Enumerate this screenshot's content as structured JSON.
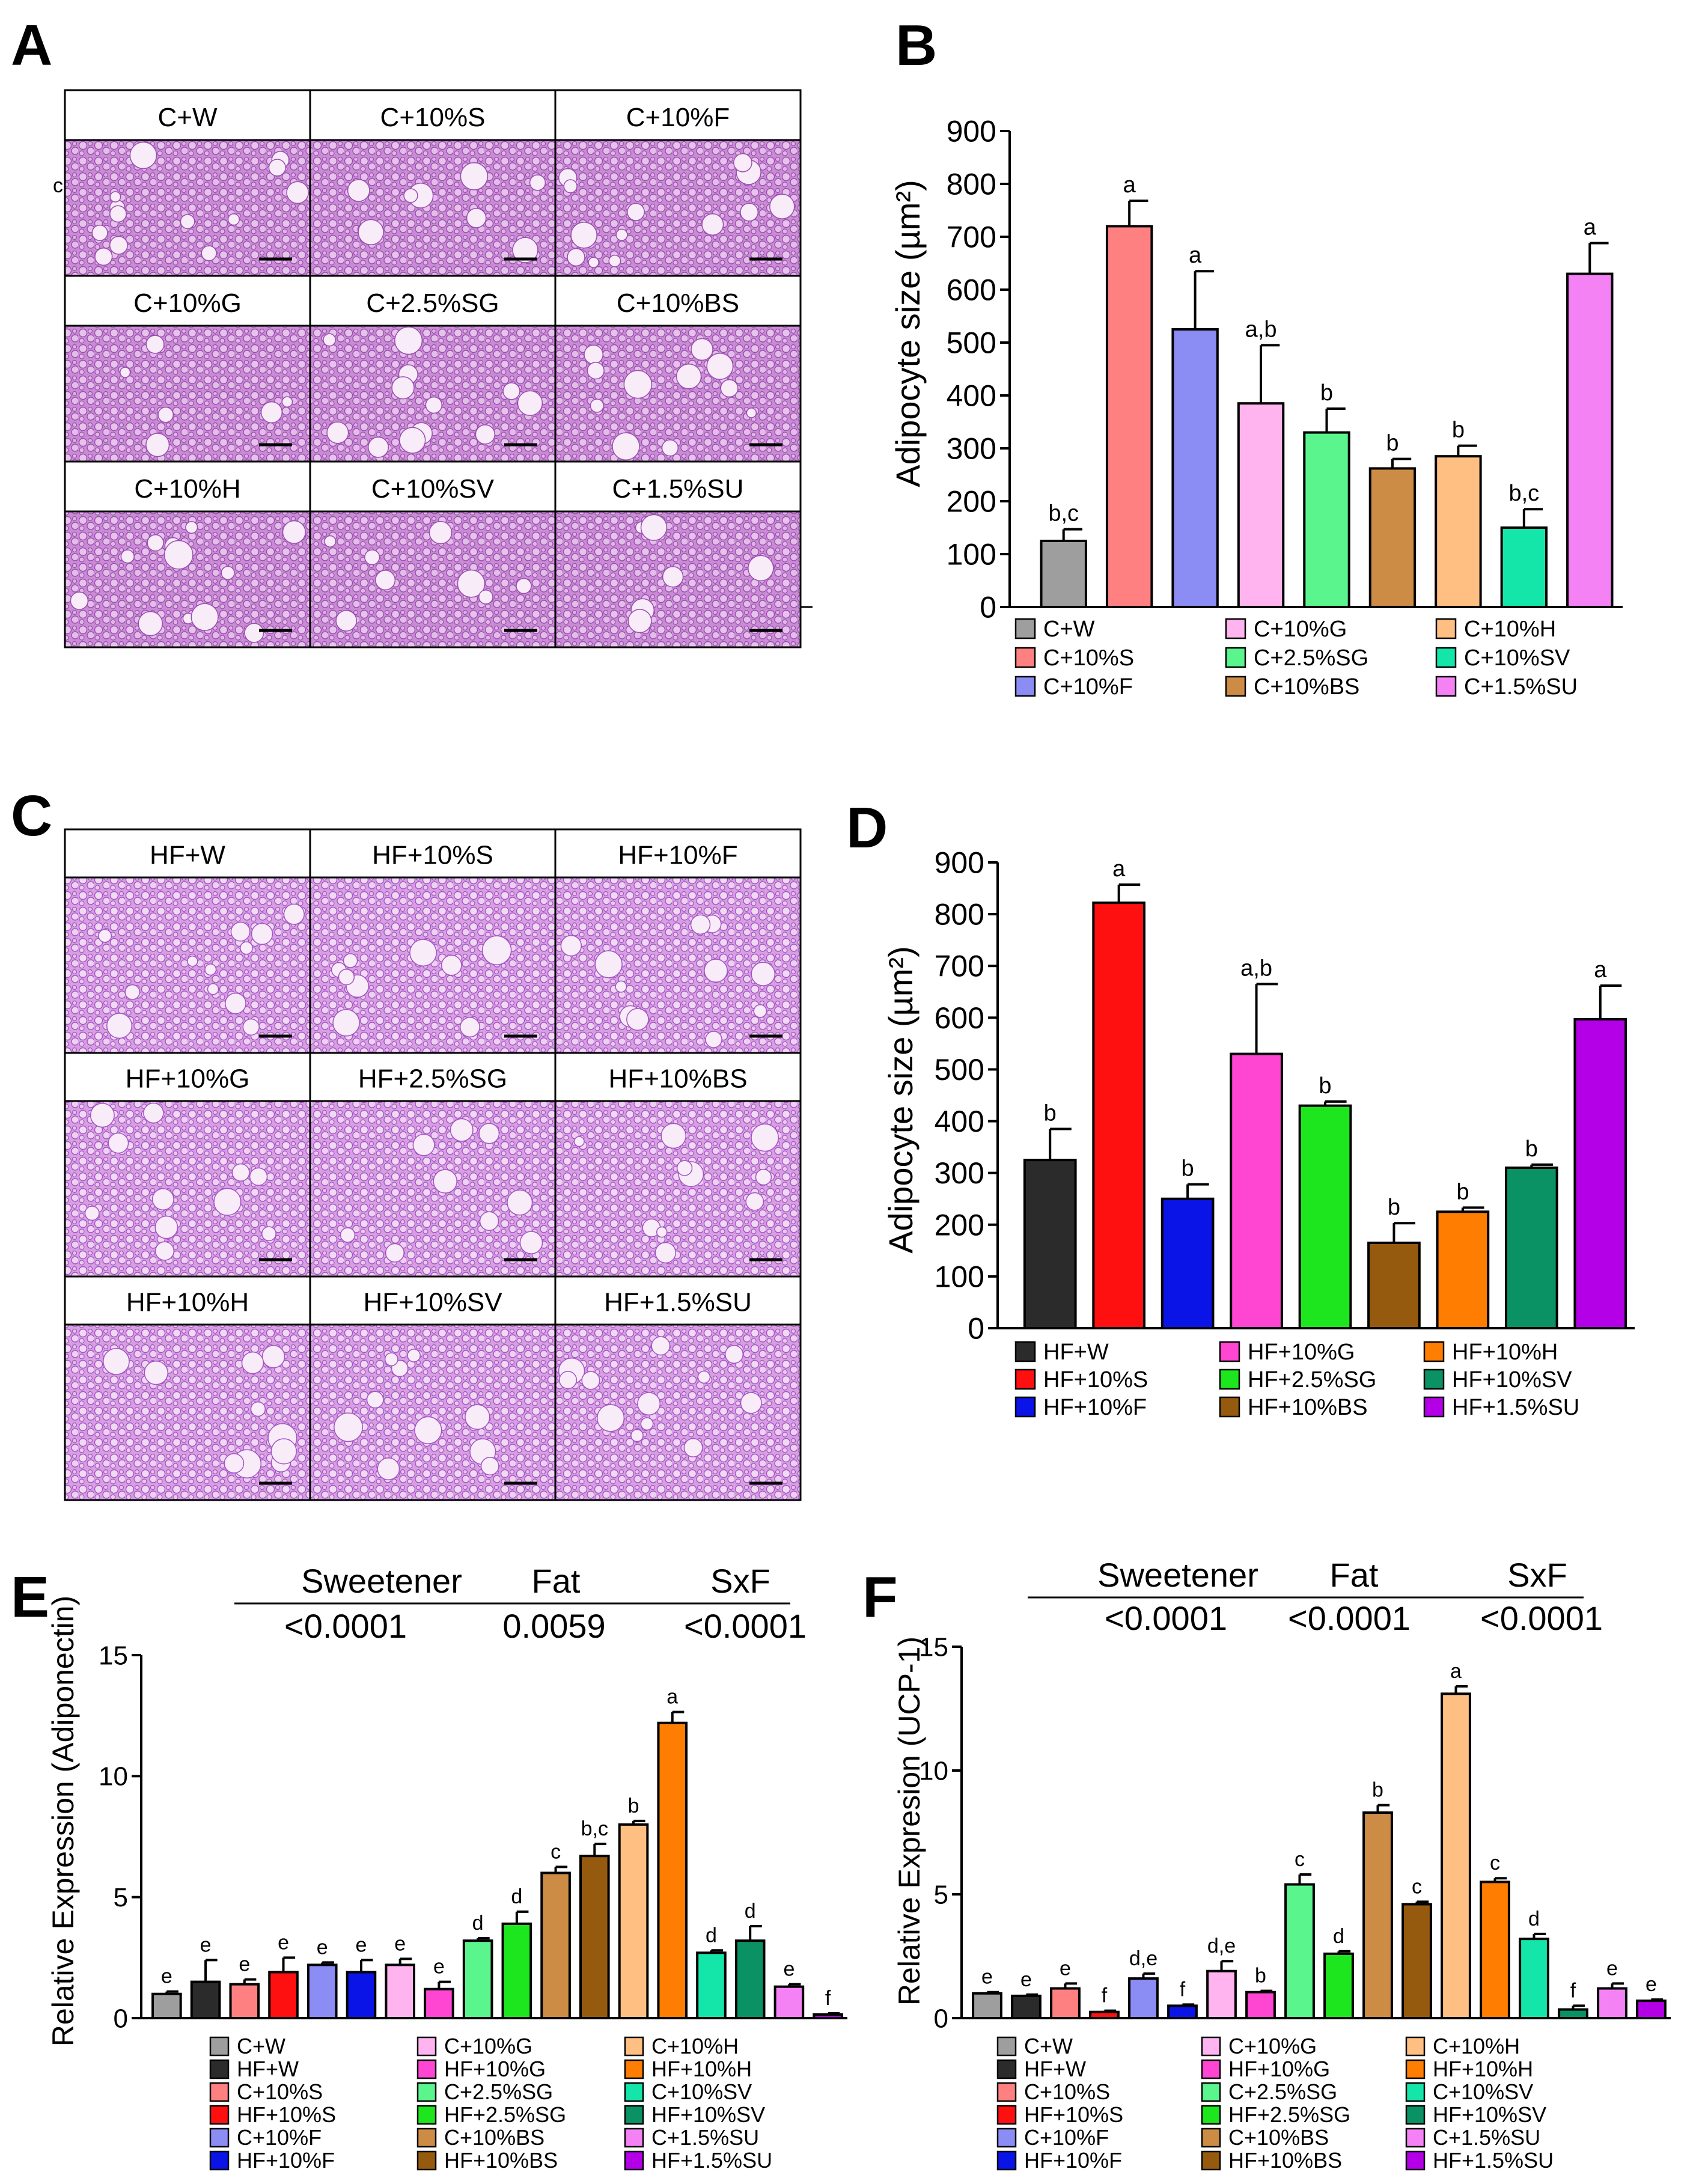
{
  "colors": {
    "C+W": "#9e9e9e",
    "HF+W": "#2b2b2b",
    "C+10%S": "#ff8080",
    "HF+10%S": "#ff1010",
    "C+10%F": "#8c8cf5",
    "HF+10%F": "#0a14e6",
    "C+10%G": "#ffb4f0",
    "HF+10%G": "#ff46d2",
    "C+2.5%SG": "#5af58c",
    "HF+2.5%SG": "#1ee61e",
    "C+10%BS": "#cd8c46",
    "HF+10%BS": "#965a0f",
    "C+10%H": "#ffbe82",
    "HF+10%H": "#ff7d00",
    "C+10%SV": "#14e6aa",
    "HF+10%SV": "#0a9164",
    "C+1.5%SU": "#f582f5",
    "HF+1.5%SU": "#b400e6",
    "histology_c": "#c78fd0",
    "histology_c_dark": "#9a4db0",
    "histology_hf": "#d49be0",
    "histology_hf_dark": "#a453c4"
  },
  "panels": {
    "A": {
      "letter": "A",
      "stray_mark": "c",
      "labels": [
        "C+W",
        "C+10%S",
        "C+10%F",
        "C+10%G",
        "C+2.5%SG",
        "C+10%BS",
        "C+10%H",
        "C+10%SV",
        "C+1.5%SU"
      ]
    },
    "C": {
      "letter": "C",
      "labels": [
        "HF+W",
        "HF+10%S",
        "HF+10%F",
        "HF+10%G",
        "HF+2.5%SG",
        "HF+10%BS",
        "HF+10%H",
        "HF+10%SV",
        "HF+1.5%SU"
      ]
    }
  },
  "chart_data": [
    {
      "panel": "B",
      "type": "bar",
      "ylabel": "Adipocyte size (µm²)",
      "ylim": [
        0,
        900
      ],
      "yticks": [
        0,
        100,
        200,
        300,
        400,
        500,
        600,
        700,
        800,
        900
      ],
      "categories": [
        "C+W",
        "C+10%S",
        "C+10%F",
        "C+10%G",
        "C+2.5%SG",
        "C+10%BS",
        "C+10%H",
        "C+10%SV",
        "C+1.5%SU"
      ],
      "values": [
        125,
        720,
        525,
        385,
        330,
        262,
        285,
        150,
        630
      ],
      "errors": [
        22,
        48,
        110,
        110,
        45,
        18,
        20,
        35,
        58
      ],
      "sig_labels": [
        "b,c",
        "a",
        "a",
        "a,b",
        "b",
        "b",
        "b",
        "b,c",
        "a"
      ],
      "legend_columns": [
        [
          "C+W",
          "C+10%S",
          "C+10%F"
        ],
        [
          "C+10%G",
          "C+2.5%SG",
          "C+10%BS"
        ],
        [
          "C+10%H",
          "C+10%SV",
          "C+1.5%SU"
        ]
      ]
    },
    {
      "panel": "D",
      "type": "bar",
      "ylabel": "Adipocyte size (µm²)",
      "ylim": [
        0,
        900
      ],
      "yticks": [
        0,
        100,
        200,
        300,
        400,
        500,
        600,
        700,
        800,
        900
      ],
      "categories": [
        "HF+W",
        "HF+10%S",
        "HF+10%F",
        "HF+10%G",
        "HF+2.5%SG",
        "HF+10%BS",
        "HF+10%H",
        "HF+10%SV",
        "HF+1.5%SU"
      ],
      "values": [
        325,
        822,
        250,
        530,
        430,
        165,
        225,
        310,
        597
      ],
      "errors": [
        60,
        35,
        28,
        135,
        8,
        38,
        8,
        6,
        65
      ],
      "sig_labels": [
        "b",
        "a",
        "b",
        "a,b",
        "b",
        "b",
        "b",
        "b",
        "a"
      ],
      "legend_columns": [
        [
          "HF+W",
          "HF+10%S",
          "HF+10%F"
        ],
        [
          "HF+10%G",
          "HF+2.5%SG",
          "HF+10%BS"
        ],
        [
          "HF+10%H",
          "HF+10%SV",
          "HF+1.5%SU"
        ]
      ]
    },
    {
      "panel": "E",
      "type": "bar",
      "ylabel": "Relative Expression (Adiponectin)",
      "ylim": [
        0,
        15
      ],
      "yticks": [
        0,
        5,
        10,
        15
      ],
      "stats": {
        "headers": [
          "Sweetener",
          "Fat",
          "SxF"
        ],
        "pvalues": [
          "<0.0001",
          "0.0059",
          "<0.0001"
        ]
      },
      "categories": [
        "C+W",
        "HF+W",
        "C+10%S",
        "HF+10%S",
        "C+10%F",
        "HF+10%F",
        "C+10%G",
        "HF+10%G",
        "C+2.5%SG",
        "HF+2.5%SG",
        "C+10%BS",
        "HF+10%BS",
        "C+10%H",
        "HF+10%H",
        "C+10%SV",
        "HF+10%SV",
        "C+1.5%SU",
        "HF+1.5%SU"
      ],
      "values": [
        1.0,
        1.5,
        1.4,
        1.9,
        2.2,
        1.9,
        2.2,
        1.2,
        3.2,
        3.9,
        6.0,
        6.7,
        8.0,
        12.2,
        2.7,
        3.2,
        1.3,
        0.15
      ],
      "errors": [
        0.1,
        0.9,
        0.2,
        0.6,
        0.1,
        0.5,
        0.25,
        0.3,
        0.1,
        0.5,
        0.25,
        0.5,
        0.15,
        0.45,
        0.1,
        0.6,
        0.1,
        0.05
      ],
      "sig_labels": [
        "e",
        "e",
        "e",
        "e",
        "e",
        "e",
        "e",
        "e",
        "d",
        "d",
        "c",
        "b,c",
        "b",
        "a",
        "d",
        "d",
        "e",
        "f"
      ],
      "legend_columns": [
        [
          "C+W",
          "HF+W",
          "C+10%S",
          "HF+10%S",
          "C+10%F",
          "HF+10%F"
        ],
        [
          "C+10%G",
          "HF+10%G",
          "C+2.5%SG",
          "HF+2.5%SG",
          "C+10%BS",
          "HF+10%BS"
        ],
        [
          "C+10%H",
          "HF+10%H",
          "C+10%SV",
          "HF+10%SV",
          "C+1.5%SU",
          "HF+1.5%SU"
        ]
      ]
    },
    {
      "panel": "F",
      "type": "bar",
      "ylabel": "Relative Expresion (UCP-1)",
      "ylim": [
        0,
        15
      ],
      "yticks": [
        0,
        5,
        10,
        15
      ],
      "stats": {
        "headers": [
          "Sweetener",
          "Fat",
          "SxF"
        ],
        "pvalues": [
          "<0.0001",
          "<0.0001",
          "<0.0001"
        ]
      },
      "categories": [
        "C+W",
        "HF+W",
        "C+10%S",
        "HF+10%S",
        "C+10%F",
        "HF+10%F",
        "C+10%G",
        "HF+10%G",
        "C+2.5%SG",
        "HF+2.5%SG",
        "C+10%BS",
        "HF+10%BS",
        "C+10%H",
        "HF+10%H",
        "C+10%SV",
        "HF+10%SV",
        "C+1.5%SU",
        "HF+1.5%SU"
      ],
      "values": [
        1.0,
        0.9,
        1.2,
        0.25,
        1.6,
        0.5,
        1.9,
        1.05,
        5.4,
        2.6,
        8.3,
        4.6,
        13.1,
        5.5,
        3.2,
        0.35,
        1.2,
        0.7
      ],
      "errors": [
        0.05,
        0.05,
        0.2,
        0.05,
        0.2,
        0.05,
        0.4,
        0.05,
        0.4,
        0.1,
        0.3,
        0.1,
        0.3,
        0.15,
        0.2,
        0.15,
        0.2,
        0.05
      ],
      "sig_labels": [
        "e",
        "e",
        "e",
        "f",
        "d,e",
        "f",
        "d,e",
        "b",
        "c",
        "d",
        "b",
        "c",
        "a",
        "c",
        "d",
        "f",
        "e",
        "e"
      ],
      "legend_columns": [
        [
          "C+W",
          "HF+W",
          "C+10%S",
          "HF+10%S",
          "C+10%F",
          "HF+10%F"
        ],
        [
          "C+10%G",
          "HF+10%G",
          "C+2.5%SG",
          "HF+2.5%SG",
          "C+10%BS",
          "HF+10%BS"
        ],
        [
          "C+10%H",
          "HF+10%H",
          "C+10%SV",
          "HF+10%SV",
          "C+1.5%SU",
          "HF+1.5%SU"
        ]
      ]
    }
  ]
}
